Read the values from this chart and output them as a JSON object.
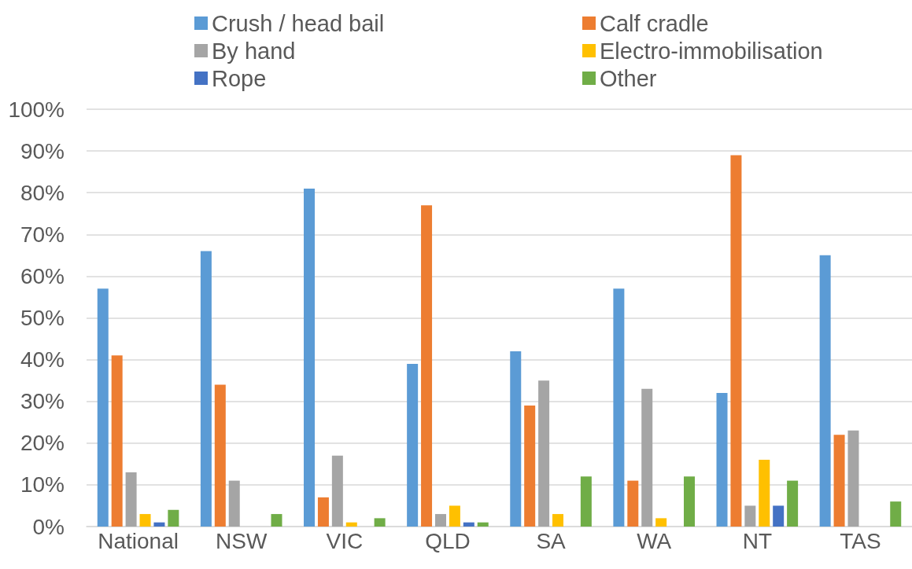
{
  "chart_data": {
    "type": "bar",
    "categories": [
      "National",
      "NSW",
      "VIC",
      "QLD",
      "SA",
      "WA",
      "NT",
      "TAS"
    ],
    "series": [
      {
        "name": "Crush / head bail",
        "color": "#5b9bd5",
        "values": [
          57,
          66,
          81,
          39,
          42,
          57,
          32,
          65
        ]
      },
      {
        "name": "Calf cradle",
        "color": "#ed7d31",
        "values": [
          41,
          34,
          7,
          77,
          29,
          11,
          89,
          22
        ]
      },
      {
        "name": "By hand",
        "color": "#a5a5a5",
        "values": [
          13,
          11,
          17,
          3,
          35,
          33,
          5,
          23
        ]
      },
      {
        "name": "Electro-immobilisation",
        "color": "#ffc000",
        "values": [
          3,
          0,
          1,
          5,
          3,
          2,
          16,
          0
        ]
      },
      {
        "name": "Rope",
        "color": "#4472c4",
        "values": [
          1,
          0,
          0,
          1,
          0,
          0,
          5,
          0
        ]
      },
      {
        "name": "Other",
        "color": "#70ad47",
        "values": [
          4,
          3,
          2,
          1,
          12,
          12,
          11,
          6
        ]
      }
    ],
    "ylim": [
      0,
      100
    ],
    "yticks": [
      {
        "value": 0,
        "label": "0%"
      },
      {
        "value": 10,
        "label": "10%"
      },
      {
        "value": 20,
        "label": "20%"
      },
      {
        "value": 30,
        "label": "30%"
      },
      {
        "value": 40,
        "label": "40%"
      },
      {
        "value": 50,
        "label": "50%"
      },
      {
        "value": 60,
        "label": "60%"
      },
      {
        "value": 70,
        "label": "70%"
      },
      {
        "value": 80,
        "label": "80%"
      },
      {
        "value": 90,
        "label": "90%"
      },
      {
        "value": 100,
        "label": "100%"
      }
    ],
    "grid": "y",
    "legend": "top"
  }
}
